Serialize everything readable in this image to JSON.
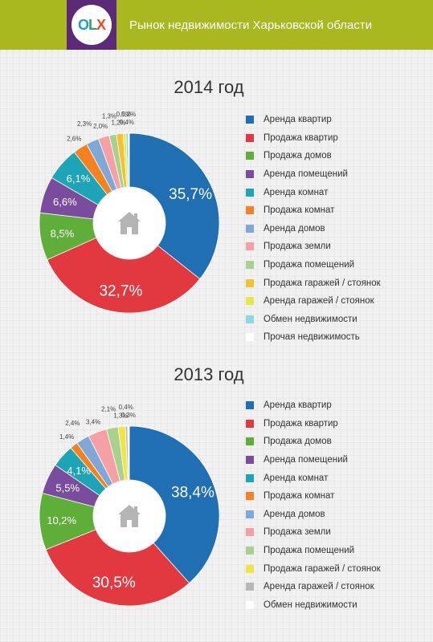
{
  "header": {
    "logo": {
      "o": "O",
      "l": "L",
      "x": "X",
      "o_color": "#1a9dd0",
      "l_color": "#2fa65a",
      "x_color": "#e84b24"
    },
    "title": "Рынок недвижимости Харьковской области",
    "background": "#a8b81e",
    "logo_background": "#5b2a76"
  },
  "chart_data": [
    {
      "type": "pie",
      "donut": true,
      "center_icon": "house-icon",
      "title": "2014 год",
      "categories": [
        "Аренда квартир",
        "Продажа квартир",
        "Продажа домов",
        "Аренда помещений",
        "Аренда комнат",
        "Продажа комнат",
        "Аренда домов",
        "Продажа земли",
        "Продажа помещений",
        "Продажа гаражей / стоянок",
        "Аренда гаражей / стоянок",
        "Обмен недвижимости",
        "Прочая недвижимость"
      ],
      "values": [
        35.7,
        32.7,
        8.5,
        6.6,
        6.1,
        2.6,
        2.3,
        2.0,
        1.3,
        1.2,
        0.5,
        0.4,
        0.2
      ],
      "labels": [
        "35,7%",
        "32,7%",
        "8,5%",
        "6,6%",
        "6,1%",
        "2,6%",
        "2,3%",
        "2,0%",
        "1,3%",
        "1,2%",
        "0,5%",
        "0,4%",
        "0,2%"
      ],
      "colors": [
        "#1f6fb2",
        "#e2383f",
        "#5fae3a",
        "#7a4c9e",
        "#1ea4b7",
        "#f58220",
        "#7fa8d6",
        "#f4a0a4",
        "#a9d18e",
        "#f1c232",
        "#e6e64d",
        "#8fd8e0",
        "#ffffff"
      ],
      "legend_position": "right"
    },
    {
      "type": "pie",
      "donut": true,
      "center_icon": "house-icon",
      "title": "2013 год",
      "categories": [
        "Аренда квартир",
        "Продажа квартир",
        "Продажа домов",
        "Аренда помещений",
        "Аренда комнат",
        "Продажа комнат",
        "Аренда домов",
        "Продажа земли",
        "Продажа помещений",
        "Продажа гаражей / стоянок",
        "Аренда гаражей / стоянок",
        "Обмен недвижимости"
      ],
      "values": [
        38.4,
        30.5,
        10.2,
        5.5,
        4.1,
        1.4,
        2.4,
        3.4,
        2.1,
        1.3,
        0.4,
        0.3
      ],
      "labels": [
        "38,4%",
        "30,5%",
        "10,2%",
        "5,5%",
        "4,1%",
        "1,4%",
        "2,4%",
        "3,4%",
        "2,1%",
        "1,3%",
        "0,4%",
        "0,3%"
      ],
      "colors": [
        "#1f6fb2",
        "#e2383f",
        "#5fae3a",
        "#7a4c9e",
        "#1ea4b7",
        "#f58220",
        "#7fa8d6",
        "#f4a0a4",
        "#a9d18e",
        "#eee647",
        "#b8b8b8",
        "#ffffff"
      ],
      "legend_position": "right"
    }
  ]
}
